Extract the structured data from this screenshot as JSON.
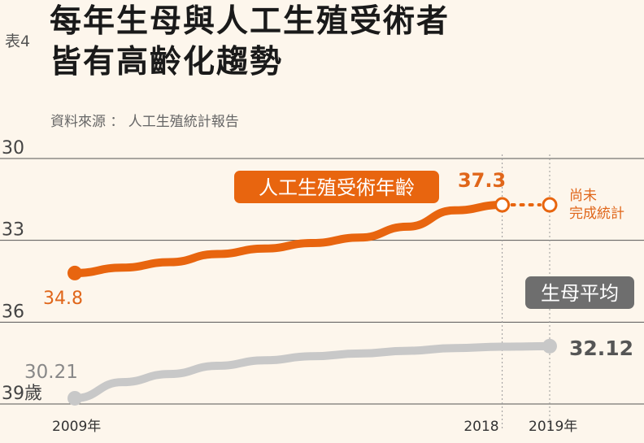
{
  "header": {
    "tag": "表4",
    "title_lines": [
      "每年生母與人工生殖受術者",
      "皆有高齡化趨勢"
    ],
    "source": "資料來源 ： 人工生殖統計報告"
  },
  "chart_data": {
    "type": "line",
    "x_start": 2009,
    "x_end": 2019,
    "x_tick_labels": [
      "2009年",
      "2018",
      "2019年"
    ],
    "y_tick_labels": [
      "39歲",
      "36",
      "33",
      "30"
    ],
    "ylim": [
      30,
      39
    ],
    "yticks": [
      30,
      33,
      36,
      39
    ],
    "grid": true,
    "series": [
      {
        "name": "人工生殖受術年齡",
        "color": "#e8650f",
        "x": [
          2009,
          2010,
          2011,
          2012,
          2013,
          2014,
          2015,
          2016,
          2017,
          2018
        ],
        "values": [
          34.8,
          35.0,
          35.2,
          35.5,
          35.7,
          35.9,
          36.1,
          36.5,
          37.1,
          37.3
        ],
        "start_label": "34.8",
        "end_label": "37.3",
        "pending_x": 2019,
        "pending_note": [
          "尚未",
          "完成統計"
        ]
      },
      {
        "name": "生母平均",
        "color": "#c8c8c8",
        "x": [
          2009,
          2010,
          2011,
          2012,
          2013,
          2014,
          2015,
          2016,
          2017,
          2018,
          2019
        ],
        "values": [
          30.21,
          30.8,
          31.1,
          31.4,
          31.6,
          31.75,
          31.85,
          31.95,
          32.05,
          32.1,
          32.12
        ],
        "start_label": "30.21",
        "end_label": "32.12"
      }
    ]
  }
}
